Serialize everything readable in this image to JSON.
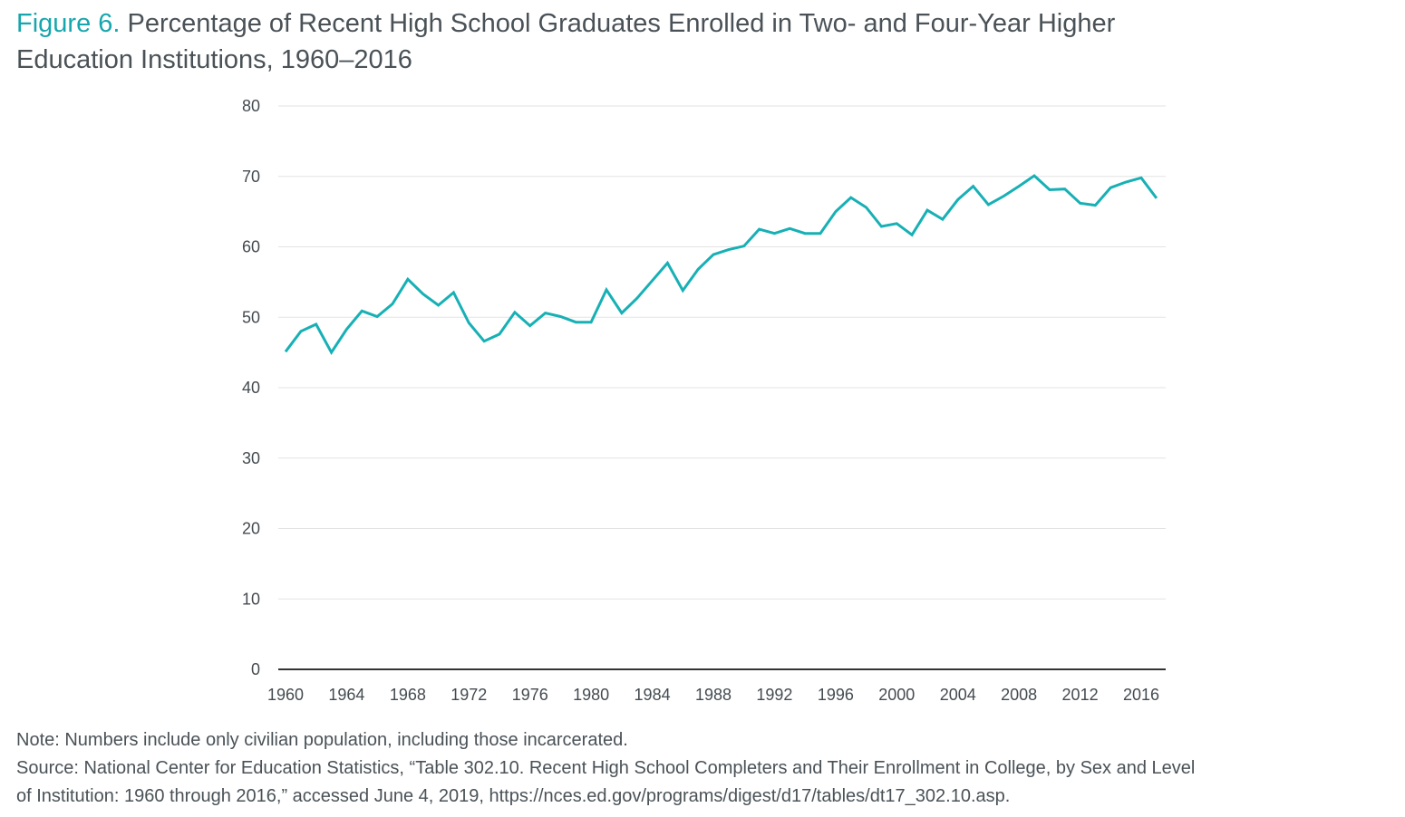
{
  "title": {
    "figure_label": "Figure 6.",
    "line1": " Percentage of Recent High School Graduates Enrolled in Two- and Four-Year Higher",
    "line2": "Education Institutions, 1960–2016"
  },
  "notes": {
    "note": "Note: Numbers include only civilian population, including those incarcerated.",
    "source_line1": "Source: National Center for Education Statistics, “Table 302.10. Recent High School Completers and Their Enrollment in College, by Sex and Level",
    "source_line2": "of Institution: 1960 through 2016,” accessed June 4, 2019, https://nces.ed.gov/programs/digest/d17/tables/dt17_302.10.asp."
  },
  "colors": {
    "line": "#17b0b5",
    "figure_label": "#17a6ad",
    "grid": "#e3e3e3",
    "axis": "#333333",
    "text": "#4a5257"
  },
  "chart_data": {
    "type": "line",
    "title": "Percentage of Recent High School Graduates Enrolled in Two- and Four-Year Higher Education Institutions, 1960–2016",
    "xlabel": "",
    "ylabel": "",
    "ylim": [
      0,
      80
    ],
    "xlim": [
      1960,
      2017
    ],
    "grid": true,
    "legend": "none",
    "yticks": [
      0,
      10,
      20,
      30,
      40,
      50,
      60,
      70,
      80
    ],
    "xticks": [
      "1960",
      "1964",
      "1968",
      "1972",
      "1976",
      "1980",
      "1984",
      "1988",
      "1992",
      "1996",
      "2000",
      "2004",
      "2008",
      "2012",
      "2016"
    ],
    "x": [
      1960,
      1961,
      1962,
      1963,
      1964,
      1965,
      1966,
      1967,
      1968,
      1969,
      1970,
      1971,
      1972,
      1973,
      1974,
      1975,
      1976,
      1977,
      1978,
      1979,
      1980,
      1981,
      1982,
      1983,
      1984,
      1985,
      1986,
      1987,
      1988,
      1989,
      1990,
      1991,
      1992,
      1993,
      1994,
      1995,
      1996,
      1997,
      1998,
      1999,
      2000,
      2001,
      2002,
      2003,
      2004,
      2005,
      2006,
      2007,
      2008,
      2009,
      2010,
      2011,
      2012,
      2013,
      2014,
      2015,
      2016,
      2017
    ],
    "series": [
      {
        "name": "Enrolled in two- and four-year institutions (%)",
        "values": [
          45.1,
          48.0,
          49.0,
          45.0,
          48.3,
          50.9,
          50.1,
          51.9,
          55.4,
          53.3,
          51.7,
          53.5,
          49.2,
          46.6,
          47.6,
          50.7,
          48.8,
          50.6,
          50.1,
          49.3,
          49.3,
          53.9,
          50.6,
          52.7,
          55.2,
          57.7,
          53.8,
          56.8,
          58.9,
          59.6,
          60.1,
          62.5,
          61.9,
          62.6,
          61.9,
          61.9,
          65.0,
          67.0,
          65.6,
          62.9,
          63.3,
          61.7,
          65.2,
          63.9,
          66.7,
          68.6,
          66.0,
          67.2,
          68.6,
          70.1,
          68.1,
          68.2,
          66.2,
          65.9,
          68.4,
          69.2,
          69.8,
          66.9
        ]
      }
    ]
  }
}
